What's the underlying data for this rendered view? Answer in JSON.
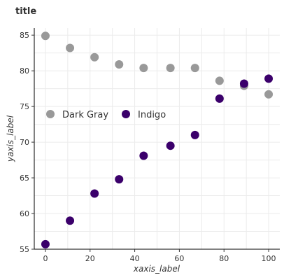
{
  "chart_data": {
    "type": "scatter",
    "title": "title",
    "xlabel": "xaxis_label",
    "ylabel": "yaxis_label",
    "xlim": [
      -5,
      105
    ],
    "ylim": [
      55,
      86
    ],
    "x_ticks": [
      0,
      20,
      40,
      60,
      80,
      100
    ],
    "y_ticks": [
      55,
      60,
      65,
      70,
      75,
      80,
      85
    ],
    "grid": true,
    "legend_position": "left-inside",
    "series": [
      {
        "name": "Dark Gray",
        "color": "#999999",
        "points": [
          {
            "x": 0,
            "y": 84.9
          },
          {
            "x": 11,
            "y": 83.2
          },
          {
            "x": 22,
            "y": 81.9
          },
          {
            "x": 33,
            "y": 80.9
          },
          {
            "x": 44,
            "y": 80.4
          },
          {
            "x": 56,
            "y": 80.4
          },
          {
            "x": 67,
            "y": 80.4
          },
          {
            "x": 78,
            "y": 78.6
          },
          {
            "x": 89,
            "y": 77.9
          },
          {
            "x": 100,
            "y": 76.7
          }
        ]
      },
      {
        "name": "Indigo",
        "color": "#3b006b",
        "points": [
          {
            "x": 0,
            "y": 55.7
          },
          {
            "x": 11,
            "y": 59.0
          },
          {
            "x": 22,
            "y": 62.8
          },
          {
            "x": 33,
            "y": 64.8
          },
          {
            "x": 44,
            "y": 68.1
          },
          {
            "x": 56,
            "y": 69.5
          },
          {
            "x": 67,
            "y": 71.0
          },
          {
            "x": 78,
            "y": 76.1
          },
          {
            "x": 89,
            "y": 78.2
          },
          {
            "x": 100,
            "y": 78.9
          }
        ]
      }
    ]
  }
}
